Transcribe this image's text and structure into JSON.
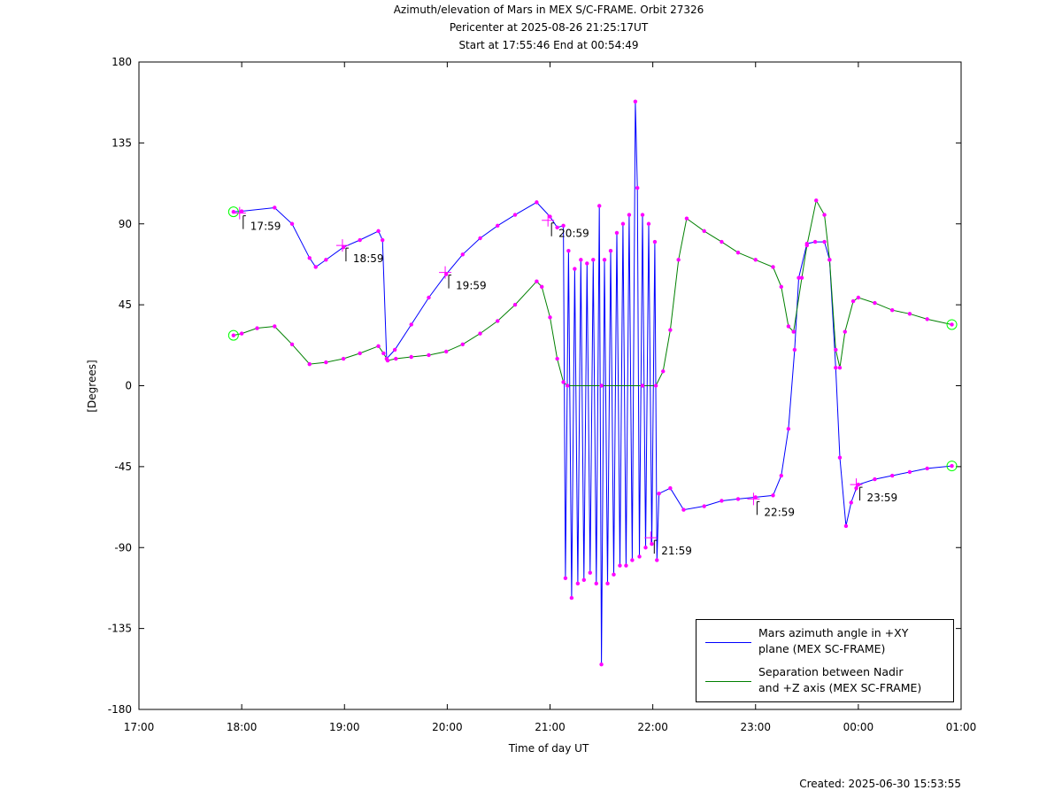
{
  "chart_data": {
    "type": "line",
    "title": "Azimuth/elevation of Mars in MEX S/C-FRAME.  Orbit 27326",
    "subtitle": "Pericenter at 2025-08-26 21:25:17UT",
    "subtitle2": "Start at 17:55:46 End at 00:54:49",
    "x_label": "Time of day UT",
    "y_label": "[Degrees]",
    "footer": "Created: 2025-06-30 15:53:55",
    "xlim": [
      17,
      25
    ],
    "xticks": [
      {
        "value": 17,
        "label": "17:00"
      },
      {
        "value": 18,
        "label": "18:00"
      },
      {
        "value": 19,
        "label": "19:00"
      },
      {
        "value": 20,
        "label": "20:00"
      },
      {
        "value": 21,
        "label": "21:00"
      },
      {
        "value": 22,
        "label": "22:00"
      },
      {
        "value": 23,
        "label": "23:00"
      },
      {
        "value": 24,
        "label": "00:00"
      },
      {
        "value": 25,
        "label": "01:00"
      }
    ],
    "ylim": [
      -180,
      180
    ],
    "yticks": [
      -180,
      -135,
      -90,
      -45,
      0,
      45,
      90,
      135,
      180
    ],
    "marker_color": "#ff00ff",
    "series": [
      {
        "name": "Mars azimuth angle in +XY\nplane (MEX SC-FRAME)",
        "color": "#0000ff",
        "x": [
          17.92,
          18.0,
          18.32,
          18.49,
          18.66,
          18.72,
          18.82,
          18.99,
          19.15,
          19.33,
          19.37,
          19.41,
          19.49,
          19.65,
          19.82,
          19.99,
          20.15,
          20.32,
          20.49,
          20.66,
          20.87,
          21.0,
          21.07,
          21.13,
          21.15,
          21.18,
          21.21,
          21.24,
          21.27,
          21.3,
          21.33,
          21.36,
          21.39,
          21.42,
          21.45,
          21.48,
          21.5,
          21.53,
          21.56,
          21.59,
          21.62,
          21.65,
          21.68,
          21.71,
          21.74,
          21.77,
          21.8,
          21.83,
          21.85,
          21.87,
          21.9,
          21.93,
          21.96,
          21.99,
          22.02,
          22.04,
          22.06,
          22.17,
          22.3,
          22.5,
          22.67,
          22.83,
          23.0,
          23.17,
          23.25,
          23.32,
          23.38,
          23.42,
          23.5,
          23.58,
          23.67,
          23.72,
          23.78,
          23.82,
          23.88,
          23.93,
          23.98,
          24.0,
          24.16,
          24.33,
          24.5,
          24.67,
          24.91
        ],
        "values": [
          96.7,
          97,
          99,
          90,
          71,
          66,
          70,
          77,
          81,
          86,
          81,
          15,
          20,
          34,
          49,
          62,
          73,
          82,
          89,
          95,
          102,
          94,
          88,
          89,
          -107,
          75,
          -118,
          65,
          -110,
          70,
          -108,
          68,
          -104,
          70,
          -110,
          100,
          -155,
          70,
          -110,
          75,
          -105,
          85,
          -100,
          90,
          -100,
          95,
          -97,
          158,
          110,
          -95,
          95,
          -90,
          90,
          -88,
          80,
          -97,
          -60,
          -57,
          -69,
          -67,
          -64,
          -63,
          -62,
          -61,
          -50,
          -24,
          20,
          60,
          79,
          80,
          80,
          70,
          10,
          -40,
          -78,
          -65,
          -57,
          -55,
          -52,
          -50,
          -48,
          -46,
          -44.6
        ]
      },
      {
        "name": "Separation between Nadir\nand +Z axis (MEX SC-FRAME)",
        "color": "#008000",
        "x": [
          17.92,
          18.0,
          18.15,
          18.32,
          18.49,
          18.66,
          18.82,
          18.99,
          19.15,
          19.33,
          19.38,
          19.42,
          19.5,
          19.65,
          19.82,
          19.99,
          20.15,
          20.32,
          20.49,
          20.66,
          20.87,
          20.92,
          21.0,
          21.07,
          21.13,
          21.17,
          21.5,
          21.9,
          22.03,
          22.1,
          22.17,
          22.25,
          22.33,
          22.5,
          22.67,
          22.83,
          23.0,
          23.17,
          23.25,
          23.32,
          23.37,
          23.45,
          23.5,
          23.59,
          23.67,
          23.72,
          23.78,
          23.82,
          23.87,
          23.95,
          24.0,
          24.16,
          24.33,
          24.5,
          24.67,
          24.91
        ],
        "values": [
          28,
          29,
          32,
          33,
          23,
          12,
          13,
          15,
          18,
          22,
          18,
          14,
          15,
          16,
          17,
          19,
          23,
          29,
          36,
          45,
          58,
          55,
          38,
          15,
          2,
          0,
          0,
          0,
          0,
          8,
          31,
          70,
          93,
          86,
          80,
          74,
          70,
          66,
          55,
          33,
          30,
          60,
          78,
          103,
          95,
          70,
          20,
          10,
          30,
          47,
          49,
          46,
          42,
          40,
          37,
          34
        ]
      }
    ],
    "annotations": [
      {
        "text": "17:59",
        "x": 17.98,
        "y": 96
      },
      {
        "text": "18:59",
        "x": 18.98,
        "y": 78
      },
      {
        "text": "19:59",
        "x": 19.98,
        "y": 63
      },
      {
        "text": "20:59",
        "x": 20.98,
        "y": 92
      },
      {
        "text": "21:59",
        "x": 21.98,
        "y": -84.5
      },
      {
        "text": "22:59",
        "x": 22.98,
        "y": -63
      },
      {
        "text": "23:59",
        "x": 23.98,
        "y": -55
      }
    ]
  }
}
